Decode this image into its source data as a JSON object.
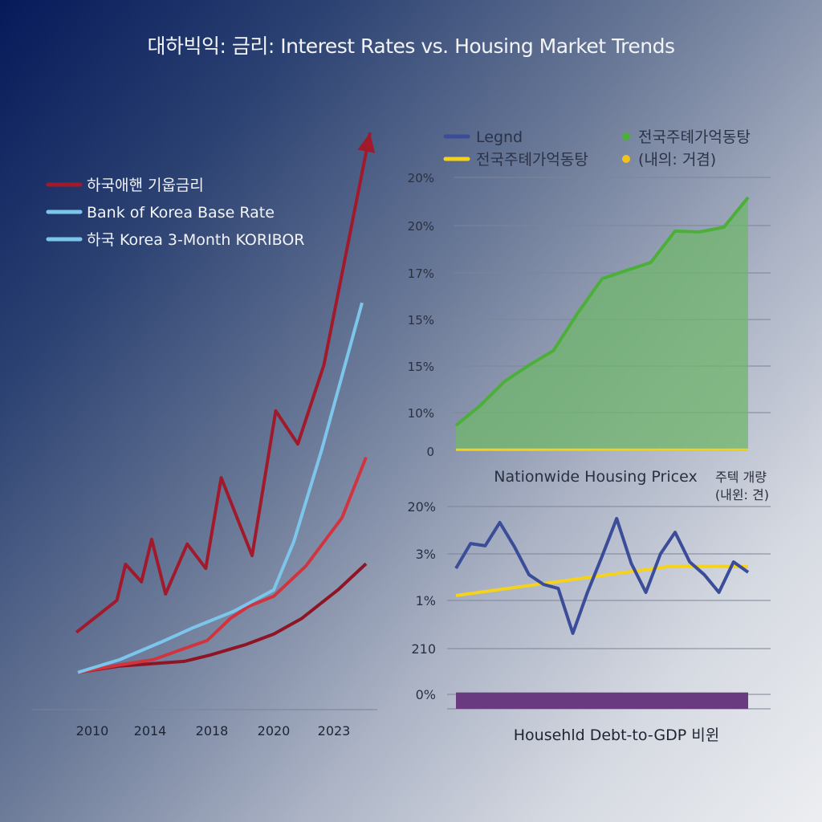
{
  "title": "대하빅익: 금리: Interest Rates vs. Housing Market Trends",
  "chart_data": [
    {
      "type": "line",
      "title": "",
      "x_ticks": [
        "2010",
        "2014",
        "2018",
        "2020",
        "2023"
      ],
      "x_tick_years": [
        2010,
        2014,
        2018,
        2020,
        2023
      ],
      "legend": [
        {
          "label": "하국애핸 기웁금리",
          "color": "#a11a2c"
        },
        {
          "label": "Bank of Korea Base Rate",
          "color": "#7cc6ec"
        },
        {
          "label": "하국 Korea 3-Month KORIBOR",
          "color": "#7cc6ec"
        }
      ],
      "legend_placement": "top-left",
      "ylim": [
        0,
        100
      ],
      "series": [
        {
          "color": "#a11a2c",
          "arrow": true,
          "x": [
            2008.9,
            2011.7,
            2012.3,
            2013.4,
            2014.1,
            2015.0,
            2016.4,
            2017.6,
            2018.3,
            2019.3,
            2020.1,
            2021.2,
            2022.5,
            2024.8
          ],
          "y": [
            13.3,
            18.8,
            25,
            22,
            29.3,
            19.9,
            28.5,
            24.3,
            39.9,
            26.5,
            51.4,
            45.7,
            59.3,
            99.3
          ]
        },
        {
          "color": "#7cc6ec",
          "x": [
            2009,
            2011.9,
            2014.7,
            2016.7,
            2018.7,
            2020,
            2021,
            2022.4,
            2024.4
          ],
          "y": [
            6.4,
            8.6,
            11.6,
            14,
            16.9,
            20.6,
            28.9,
            44.8,
            70
          ]
        },
        {
          "color": "#d0343e",
          "x": [
            2009,
            2011.9,
            2014.2,
            2016.2,
            2017.7,
            2018.6,
            2019.2,
            2020,
            2021.6,
            2023.4,
            2024.6
          ],
          "y": [
            6.4,
            7.7,
            8.6,
            10.5,
            11.9,
            15.7,
            17.8,
            19.5,
            24.7,
            33,
            43.4
          ]
        },
        {
          "color": "#8e1526",
          "x": [
            2009,
            2011.9,
            2016.2,
            2017.9,
            2019.1,
            2020,
            2021.4,
            2023.2,
            2024.6
          ],
          "y": [
            6.4,
            7.5,
            8.3,
            9.4,
            11.2,
            13,
            15.7,
            20.6,
            25.1
          ]
        }
      ]
    },
    {
      "type": "area",
      "xlabel": "Nationwide Housing Pricex",
      "y_ticks": [
        "0",
        "10%",
        "15%",
        "15%",
        "17%",
        "20%",
        "20%"
      ],
      "ylim": [
        0,
        100
      ],
      "grid": true,
      "legend": [
        {
          "label": "Legnd",
          "color": "#3b4d99",
          "marker": "line"
        },
        {
          "label": "전국주톄가억동탕",
          "color": "#4caf3a",
          "marker": "dot"
        },
        {
          "label": "전국주톄가억동탕",
          "color": "#f2d21b",
          "marker": "line"
        },
        {
          "label": "(내의: 거겸)",
          "color": "#f2c21b",
          "marker": "dot"
        }
      ],
      "legend_placement": "top",
      "series": [
        {
          "color": "#4caf3a",
          "fill": "#6fb56b",
          "values": [
            9.4,
            16.7,
            25.5,
            31.4,
            36.7,
            50.4,
            63,
            66,
            68.9,
            80.4,
            80.1,
            81.8,
            92.7
          ]
        },
        {
          "color": "#f2d21b",
          "values": [
            0.5,
            0.5,
            0.5,
            0.5,
            0.5,
            0.5,
            0.5,
            0.5,
            0.5,
            0.5,
            0.5,
            0.5,
            0.5
          ]
        }
      ]
    },
    {
      "type": "line",
      "xlabel": "Househld Debt-to-GDP 비윈",
      "annotation": [
        "주텍 개량",
        "(내윈: 견)"
      ],
      "y_ticks": [
        "0%",
        "210",
        "1%",
        "3%",
        "20%"
      ],
      "ylim": [
        -8,
        100
      ],
      "grid": true,
      "series": [
        {
          "color": "#3b4d99",
          "values": [
            67.1,
            80.3,
            79.1,
            91.5,
            78.6,
            63.7,
            58.5,
            56.4,
            32.5,
            54.3,
            73.5,
            93.6,
            69.7,
            54.3,
            74.8,
            86.3,
            70.5,
            63.7,
            54.3,
            70.5,
            65
          ]
        },
        {
          "color": "#f5d21c",
          "x": [
            0,
            14.4,
            16,
            20
          ],
          "y": [
            52.6,
            67.9,
            68.4,
            67.9
          ]
        },
        {
          "color": "#6a3a80",
          "type": "band",
          "y": [
            -7.7,
            1
          ]
        }
      ]
    }
  ]
}
